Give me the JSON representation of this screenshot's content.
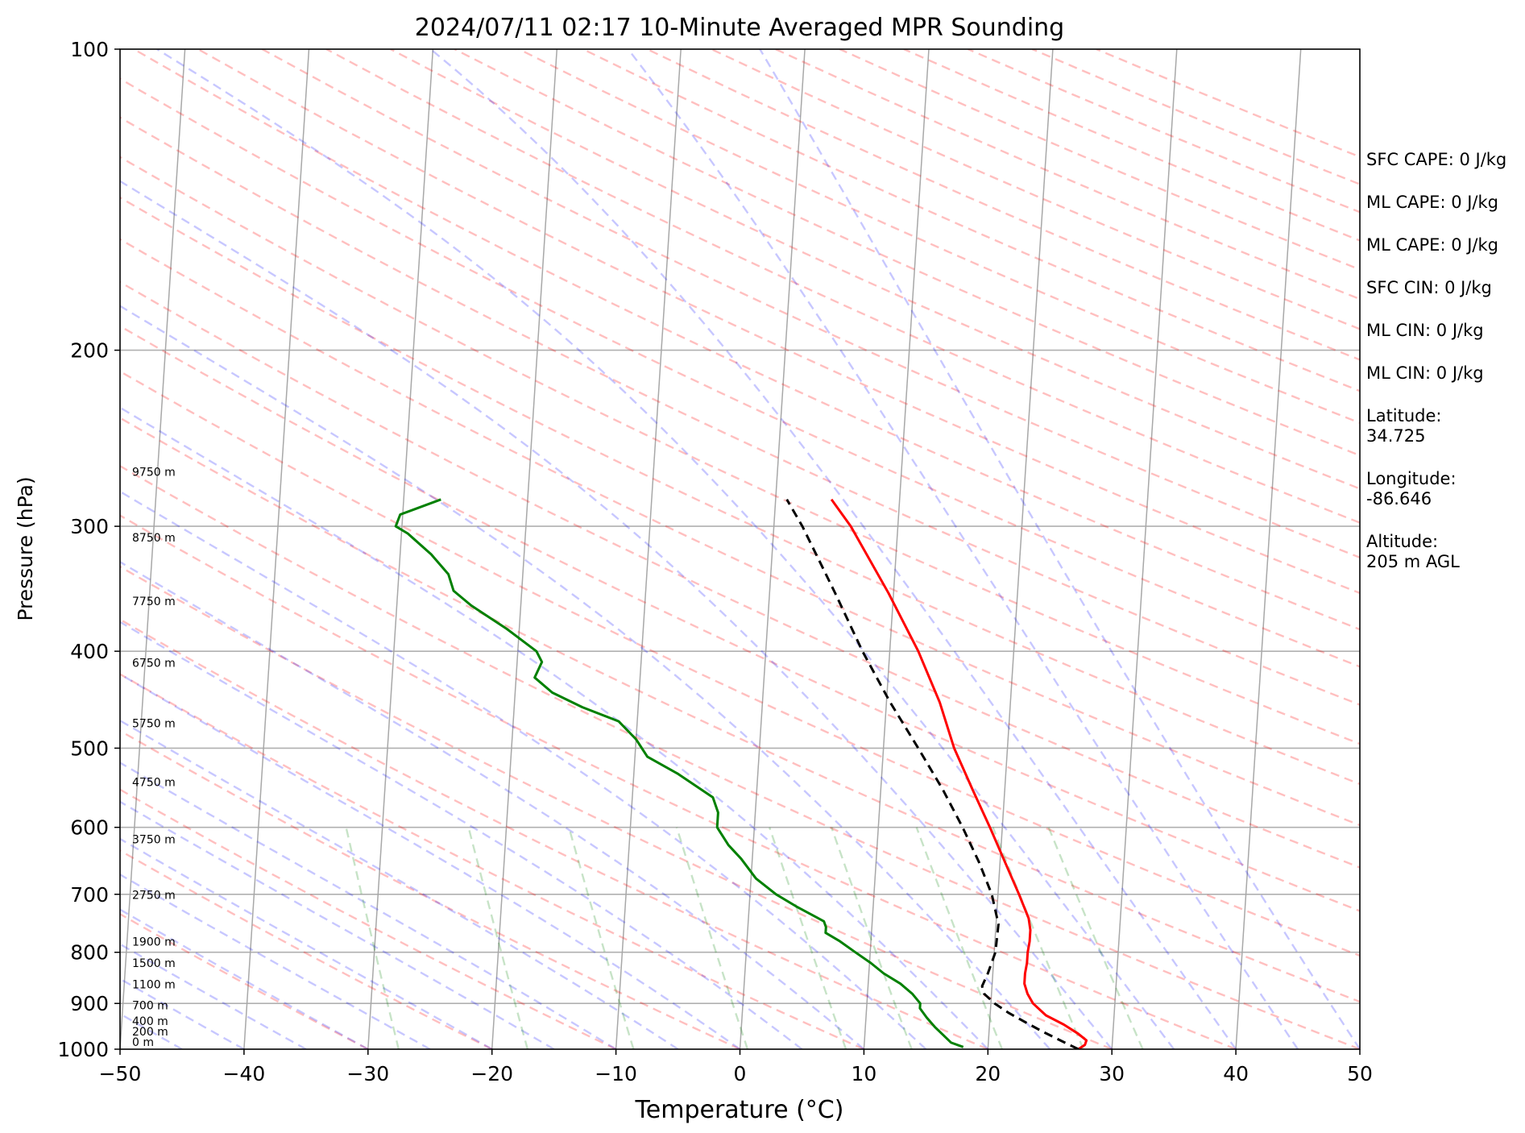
{
  "chart_data": {
    "type": "skew-t",
    "title": "2024/07/11 02:17 10-Minute Averaged MPR Sounding",
    "xlabel": "Temperature (°C)",
    "ylabel": "Pressure (hPa)",
    "xlim": [
      -50,
      50
    ],
    "ylim": [
      1000,
      100
    ],
    "y_scale": "log",
    "x_ticks": [
      "−50",
      "−40",
      "−30",
      "−20",
      "−10",
      "0",
      "10",
      "20",
      "30",
      "40",
      "50"
    ],
    "y_ticks": [
      "100",
      "200",
      "300",
      "400",
      "500",
      "600",
      "700",
      "800",
      "900",
      "1000"
    ],
    "grid": true,
    "height_labels": [
      "0 m",
      "200 m",
      "400 m",
      "700 m",
      "1100 m",
      "1500 m",
      "1900 m",
      "2750 m",
      "3750 m",
      "4750 m",
      "5750 m",
      "6750 m",
      "7750 m",
      "8750 m",
      "9750 m"
    ],
    "series": [
      {
        "color": "#ff0000",
        "style": "solid",
        "points": [
          [
            1000,
            27.3
          ],
          [
            990,
            27.8
          ],
          [
            980,
            27.9
          ],
          [
            965,
            27.2
          ],
          [
            945,
            26.0
          ],
          [
            925,
            24.5
          ],
          [
            900,
            23.4
          ],
          [
            880,
            22.9
          ],
          [
            860,
            22.6
          ],
          [
            840,
            22.6
          ],
          [
            820,
            22.7
          ],
          [
            800,
            22.7
          ],
          [
            780,
            22.8
          ],
          [
            760,
            22.8
          ],
          [
            740,
            22.6
          ],
          [
            700,
            21.7
          ],
          [
            650,
            20.4
          ],
          [
            600,
            19.0
          ],
          [
            550,
            17.4
          ],
          [
            500,
            15.7
          ],
          [
            450,
            14.3
          ],
          [
            400,
            12.3
          ],
          [
            350,
            9.6
          ],
          [
            300,
            6.2
          ],
          [
            282,
            4.5
          ]
        ]
      },
      {
        "color": "#000000",
        "style": "dashed",
        "points": [
          [
            1000,
            27.3
          ],
          [
            980,
            25.8
          ],
          [
            960,
            24.3
          ],
          [
            940,
            22.9
          ],
          [
            920,
            21.5
          ],
          [
            900,
            20.3
          ],
          [
            880,
            19.4
          ],
          [
            865,
            19.2
          ],
          [
            840,
            19.6
          ],
          [
            800,
            20.1
          ],
          [
            750,
            20.2
          ],
          [
            700,
            19.5
          ],
          [
            650,
            18.3
          ],
          [
            600,
            16.8
          ],
          [
            550,
            15.0
          ],
          [
            500,
            12.8
          ],
          [
            450,
            10.3
          ],
          [
            400,
            7.8
          ],
          [
            350,
            5.3
          ],
          [
            300,
            2.3
          ],
          [
            282,
            0.9
          ]
        ]
      },
      {
        "color": "#008000",
        "style": "solid",
        "points": [
          [
            995,
            18.0
          ],
          [
            985,
            17.0
          ],
          [
            970,
            16.4
          ],
          [
            950,
            15.6
          ],
          [
            930,
            14.9
          ],
          [
            910,
            14.3
          ],
          [
            900,
            14.3
          ],
          [
            880,
            13.6
          ],
          [
            860,
            12.6
          ],
          [
            840,
            11.2
          ],
          [
            820,
            10.1
          ],
          [
            800,
            8.8
          ],
          [
            780,
            7.5
          ],
          [
            765,
            6.3
          ],
          [
            755,
            6.3
          ],
          [
            745,
            6.1
          ],
          [
            720,
            3.8
          ],
          [
            700,
            2.1
          ],
          [
            675,
            0.4
          ],
          [
            645,
            -0.9
          ],
          [
            625,
            -2.0
          ],
          [
            600,
            -3.0
          ],
          [
            580,
            -3.0
          ],
          [
            560,
            -3.5
          ],
          [
            530,
            -6.5
          ],
          [
            510,
            -9.0
          ],
          [
            490,
            -10.0
          ],
          [
            470,
            -11.5
          ],
          [
            455,
            -14.5
          ],
          [
            440,
            -17.0
          ],
          [
            425,
            -18.5
          ],
          [
            410,
            -18.0
          ],
          [
            400,
            -18.5
          ],
          [
            380,
            -21.0
          ],
          [
            360,
            -24.0
          ],
          [
            348,
            -25.5
          ],
          [
            335,
            -26.0
          ],
          [
            320,
            -27.5
          ],
          [
            305,
            -29.5
          ],
          [
            300,
            -30.5
          ],
          [
            292,
            -30.2
          ],
          [
            282,
            -27.0
          ]
        ]
      }
    ]
  },
  "side_info": [
    "SFC CAPE: 0 J/kg",
    "ML CAPE: 0 J/kg",
    "ML CAPE: 0 J/kg",
    "SFC CIN: 0 J/kg",
    "ML CIN: 0 J/kg",
    "ML CIN: 0 J/kg",
    "Latitude:\n34.725",
    "Longitude:\n-86.646",
    "Altitude:\n205 m AGL"
  ]
}
